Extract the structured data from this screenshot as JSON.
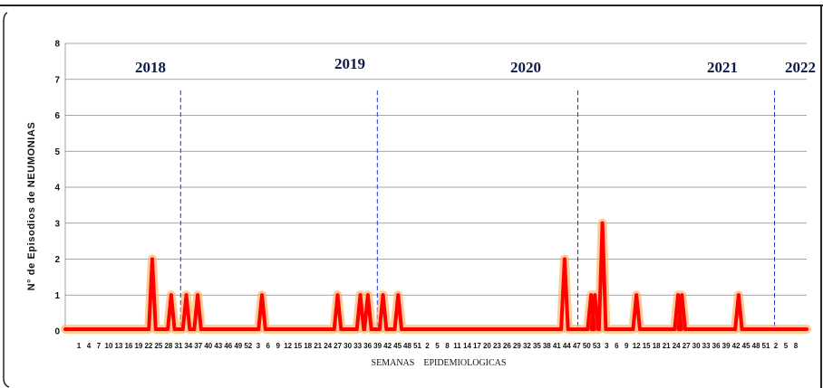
{
  "chart_data": {
    "type": "line",
    "title": "",
    "xlabel": "SEMANAS EPIDEMIOLOGICAS",
    "ylabel": "N° de Episodios de NEUMONIAS",
    "ylim": [
      0,
      8
    ],
    "yticks": [
      0,
      1,
      2,
      3,
      4,
      5,
      6,
      7,
      8
    ],
    "grid": true,
    "series_color": "#ff0000",
    "glow_color": "#ffb060",
    "divider_color": "#2233cc",
    "years": [
      {
        "label": "2018",
        "start_index": 0,
        "end_index": 30
      },
      {
        "label": "2019",
        "start_index": 31,
        "end_index": 82
      },
      {
        "label": "2020",
        "start_index": 83,
        "end_index": 135
      },
      {
        "label": "2021",
        "start_index": 136,
        "end_index": 187
      },
      {
        "label": "2022",
        "start_index": 188,
        "end_index": 196
      }
    ],
    "xtick_labels": [
      "1",
      "4",
      "7",
      "10",
      "13",
      "16",
      "19",
      "22",
      "25",
      "28",
      "31",
      "34",
      "37",
      "40",
      "43",
      "46",
      "49",
      "52",
      "3",
      "6",
      "9",
      "12",
      "15",
      "18",
      "21",
      "24",
      "27",
      "30",
      "33",
      "36",
      "39",
      "42",
      "45",
      "48",
      "51",
      "2",
      "5",
      "8",
      "11",
      "14",
      "17",
      "20",
      "23",
      "26",
      "29",
      "32",
      "35",
      "38",
      "41",
      "44",
      "47",
      "50",
      "53",
      "3",
      "6",
      "9",
      "12",
      "15",
      "18",
      "21",
      "24",
      "27",
      "30",
      "33",
      "36",
      "39",
      "42",
      "45",
      "48",
      "51",
      "2",
      "5",
      "8"
    ],
    "peaks": [
      {
        "year": "2018",
        "week": 24,
        "value": 2
      },
      {
        "year": "2018",
        "week": 29,
        "value": 1
      },
      {
        "year": "2018",
        "week": 33,
        "value": 1
      },
      {
        "year": "2018",
        "week": 36,
        "value": 1
      },
      {
        "year": "2019",
        "week": 22,
        "value": 1
      },
      {
        "year": "2019",
        "week": 42,
        "value": 1
      },
      {
        "year": "2019",
        "week": 48,
        "value": 1
      },
      {
        "year": "2019",
        "week": 50,
        "value": 1
      },
      {
        "year": "2020",
        "week": 2,
        "value": 1
      },
      {
        "year": "2020",
        "week": 6,
        "value": 1
      },
      {
        "year": "2020",
        "week": 50,
        "value": 2
      },
      {
        "year": "2021",
        "week": 4,
        "value": 1
      },
      {
        "year": "2021",
        "week": 5,
        "value": 1
      },
      {
        "year": "2021",
        "week": 7,
        "value": 3
      },
      {
        "year": "2021",
        "week": 16,
        "value": 1
      },
      {
        "year": "2021",
        "week": 27,
        "value": 1
      },
      {
        "year": "2021",
        "week": 28,
        "value": 1
      },
      {
        "year": "2021",
        "week": 43,
        "value": 1
      }
    ]
  }
}
